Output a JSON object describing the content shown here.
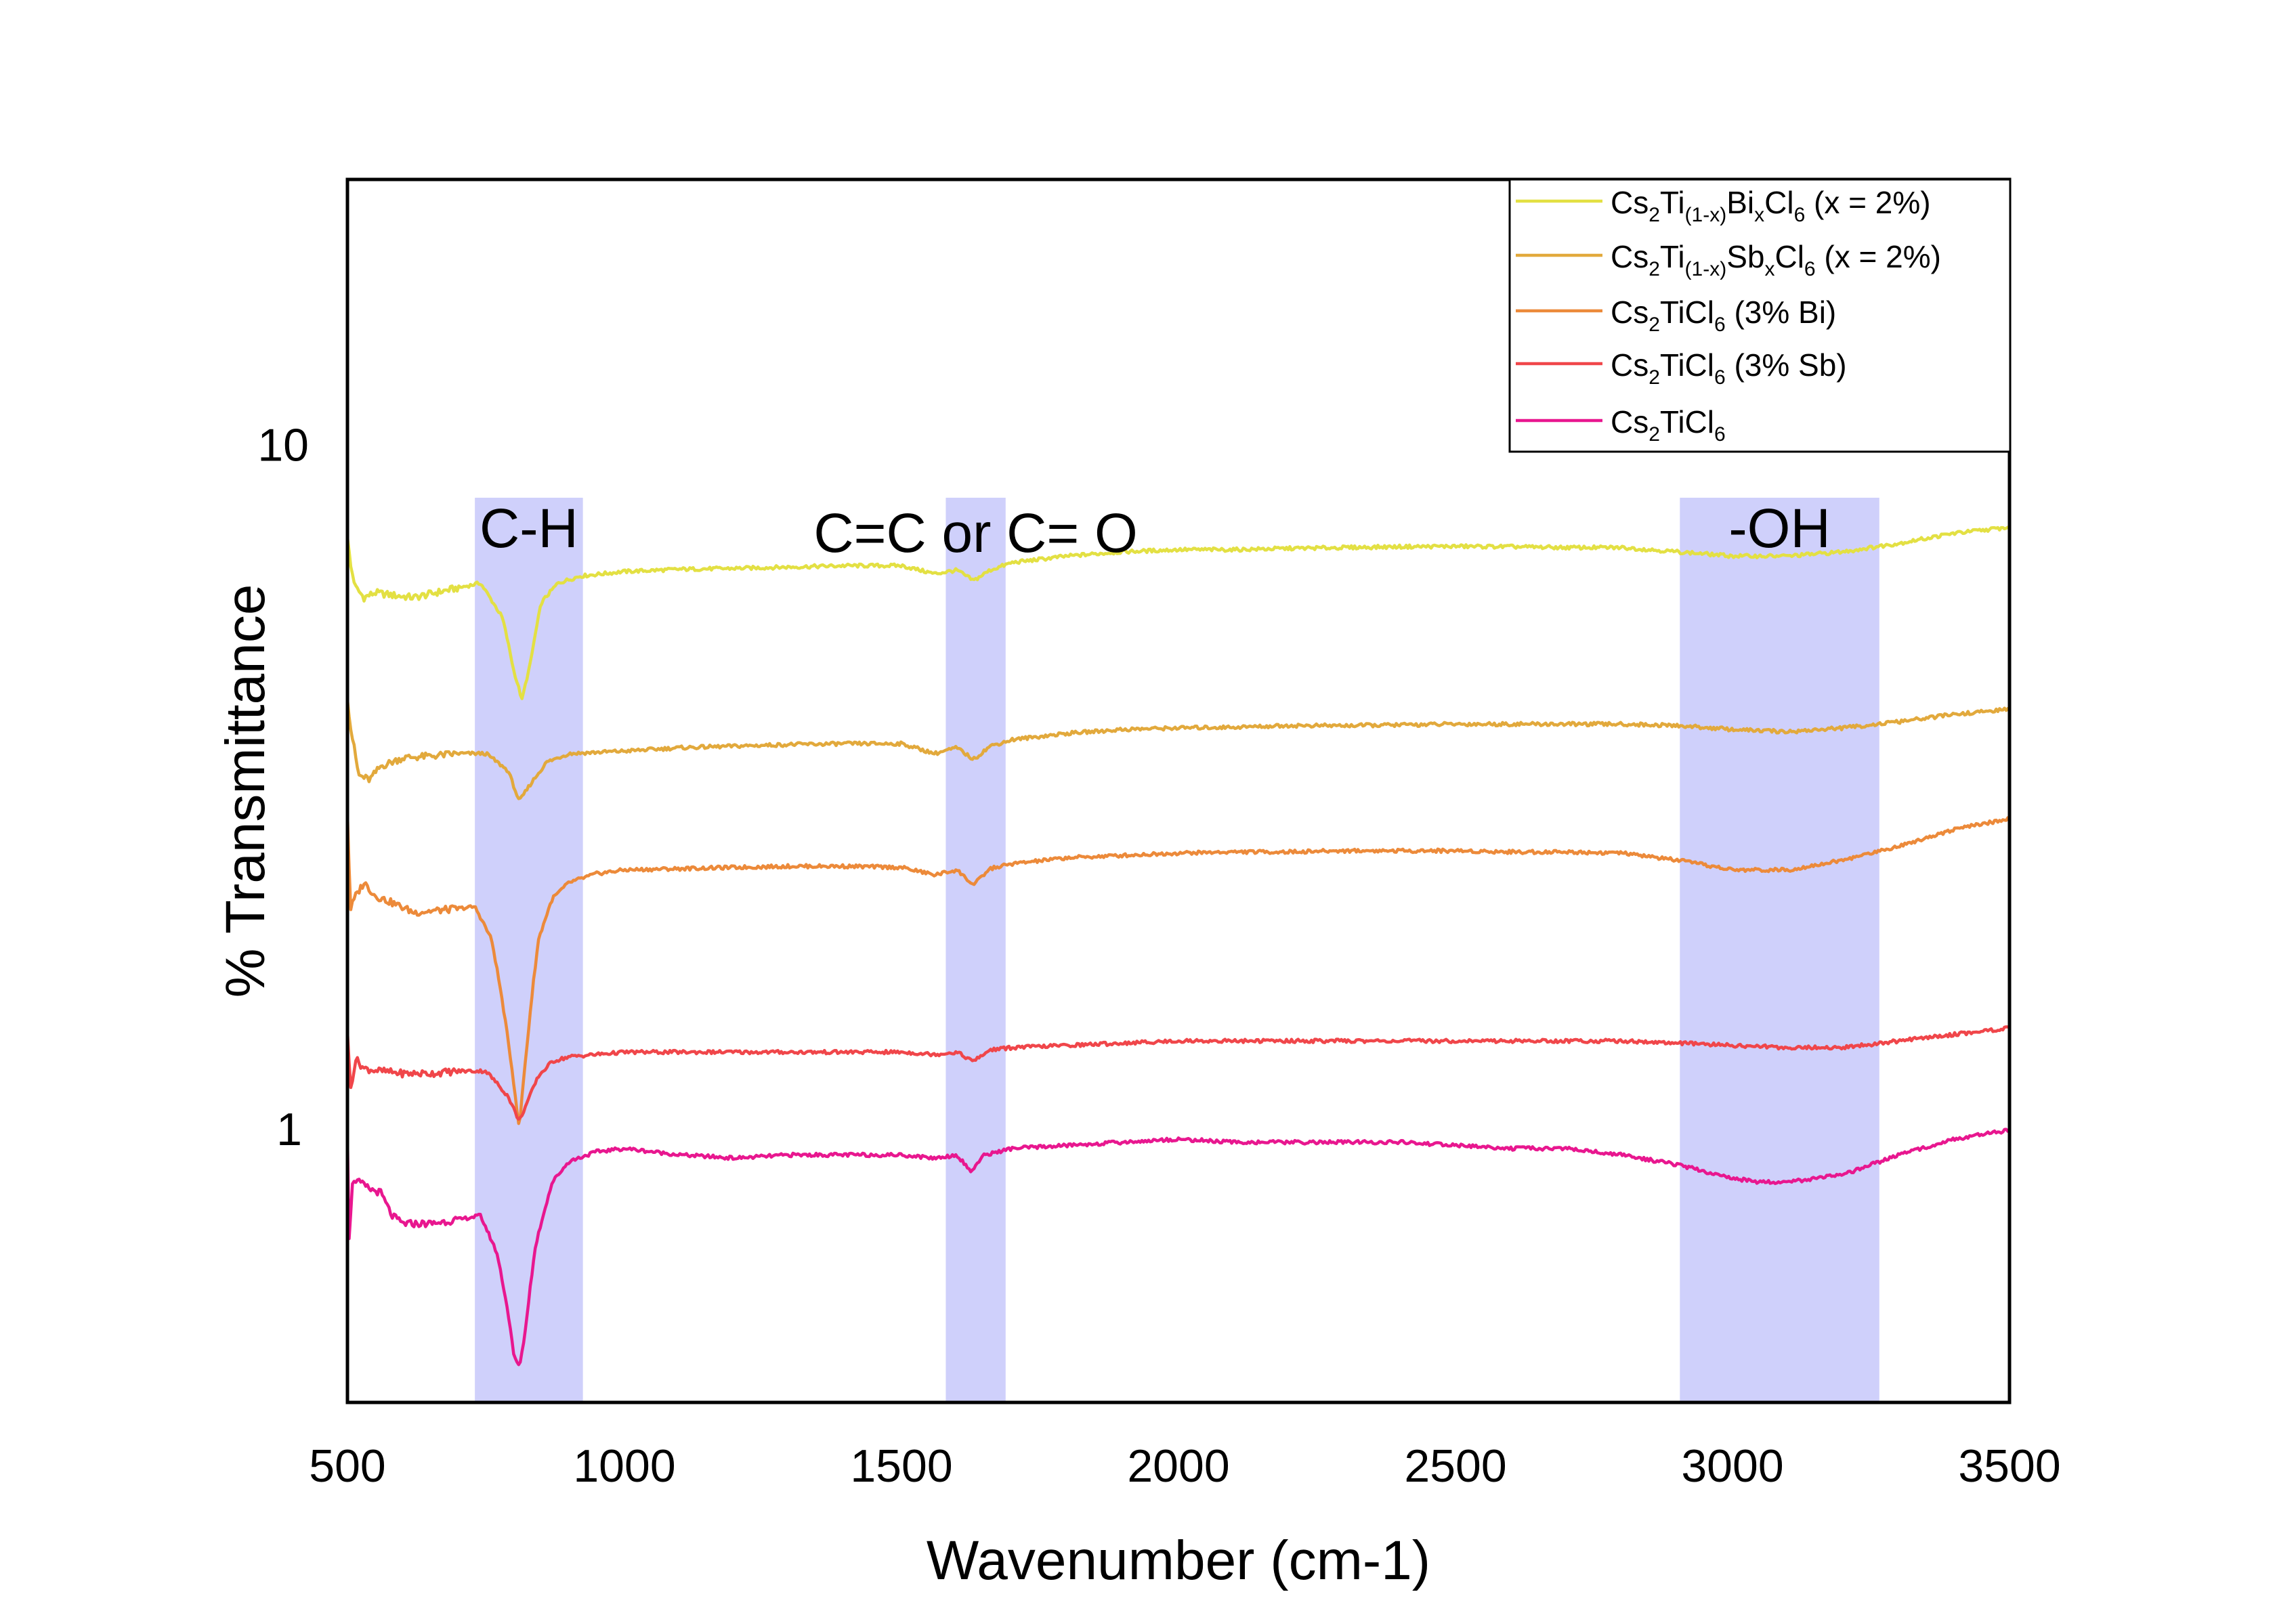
{
  "chart_data": {
    "type": "line",
    "title": "",
    "xlabel": "Wavenumber (cm-1)",
    "ylabel": "% Transmittance",
    "xlim": [
      500,
      3500
    ],
    "ylim": [
      0.4,
      24.5
    ],
    "yscale": "log",
    "x_ticks": [
      {
        "value": 500,
        "label": "500"
      },
      {
        "value": 1000,
        "label": "1000"
      },
      {
        "value": 1500,
        "label": "1500"
      },
      {
        "value": 2000,
        "label": "2000"
      },
      {
        "value": 2500,
        "label": "2500"
      },
      {
        "value": 3000,
        "label": "3000"
      },
      {
        "value": 3500,
        "label": "3500"
      }
    ],
    "y_ticks": [
      {
        "value": 1,
        "label": "1"
      },
      {
        "value": 10,
        "label": "10"
      }
    ],
    "grid": false,
    "bands": [
      {
        "label": "C-H",
        "x_range": [
          730,
          925
        ],
        "color": "#cfd0fb"
      },
      {
        "label": "C=C or C= O",
        "x_range": [
          1580,
          1688
        ],
        "color": "#cfd0fb"
      },
      {
        "label": "-OH",
        "x_range": [
          2905,
          3265
        ],
        "color": "#cfd0fb"
      }
    ],
    "legend": {
      "position": "top-right",
      "entries": [
        {
          "base": "Cs",
          "s1": "2",
          "t1": "Ti",
          "s2": "(1-x)",
          "t2": "Bi",
          "s3": "x",
          "t3": "Cl",
          "s4": "6",
          "tail": " (x = 2%)"
        },
        {
          "base": "Cs",
          "s1": "2",
          "t1": "Ti",
          "s2": "(1-x)",
          "t2": "Sb",
          "s3": "x",
          "t3": "Cl",
          "s4": "6",
          "tail": " (x = 2%)"
        },
        {
          "base": "Cs",
          "s1": "2",
          "t1": "TiCl",
          "s2": "6",
          "tail": " (3% Bi)"
        },
        {
          "base": "Cs",
          "s1": "2",
          "t1": "TiCl",
          "s2": "6",
          "tail": " (3% Sb)"
        },
        {
          "base": "Cs",
          "s1": "2",
          "t1": "TiCl",
          "s2": "6",
          "tail": ""
        }
      ]
    },
    "series": [
      {
        "name": "Cs2Ti(1-x)BixCl6 (x = 2%)",
        "color": "#e3e043",
        "x": [
          500,
          505,
          515,
          530,
          550,
          580,
          620,
          680,
          740,
          780,
          800,
          815,
          830,
          850,
          880,
          920,
          1000,
          1100,
          1200,
          1300,
          1400,
          1500,
          1560,
          1600,
          1630,
          1660,
          1700,
          1800,
          1900,
          2000,
          2100,
          2200,
          2300,
          2400,
          2500,
          2600,
          2700,
          2800,
          2900,
          3000,
          3100,
          3200,
          3300,
          3400,
          3500
        ],
        "y": [
          7.4,
          6.7,
          6.2,
          6.0,
          6.1,
          6.05,
          6.0,
          6.15,
          6.3,
          5.6,
          4.7,
          4.25,
          4.8,
          5.9,
          6.3,
          6.45,
          6.55,
          6.6,
          6.62,
          6.65,
          6.68,
          6.68,
          6.5,
          6.58,
          6.35,
          6.58,
          6.75,
          6.9,
          7.0,
          7.05,
          7.05,
          7.08,
          7.1,
          7.12,
          7.13,
          7.12,
          7.1,
          7.1,
          7.0,
          6.9,
          6.9,
          7.0,
          7.2,
          7.45,
          7.6
        ]
      },
      {
        "name": "Cs2Ti(1-x)SbxCl6 (x = 2%)",
        "color": "#e2a93c",
        "x": [
          500,
          505,
          520,
          540,
          560,
          600,
          650,
          700,
          750,
          790,
          810,
          830,
          860,
          900,
          1000,
          1100,
          1200,
          1300,
          1400,
          1500,
          1560,
          1600,
          1630,
          1660,
          1700,
          1800,
          1900,
          2000,
          2100,
          2200,
          2300,
          2400,
          2500,
          2600,
          2700,
          2800,
          2900,
          3000,
          3100,
          3200,
          3300,
          3400,
          3500
        ],
        "y": [
          4.3,
          3.9,
          3.3,
          3.25,
          3.4,
          3.5,
          3.52,
          3.55,
          3.55,
          3.35,
          3.02,
          3.2,
          3.45,
          3.55,
          3.58,
          3.62,
          3.64,
          3.66,
          3.67,
          3.67,
          3.55,
          3.62,
          3.48,
          3.64,
          3.72,
          3.8,
          3.85,
          3.87,
          3.88,
          3.9,
          3.9,
          3.91,
          3.92,
          3.92,
          3.92,
          3.92,
          3.9,
          3.85,
          3.82,
          3.87,
          3.95,
          4.05,
          4.12
        ]
      },
      {
        "name": "Cs2TiCl6 (3% Bi)",
        "color": "#ec8a3a",
        "x": [
          500,
          505,
          515,
          530,
          550,
          580,
          620,
          680,
          730,
          760,
          790,
          810,
          825,
          845,
          870,
          900,
          950,
          1000,
          1100,
          1200,
          1300,
          1400,
          1500,
          1560,
          1600,
          1630,
          1660,
          1700,
          1800,
          1900,
          2000,
          2100,
          2200,
          2300,
          2400,
          2500,
          2600,
          2700,
          2800,
          2900,
          3000,
          3100,
          3200,
          3300,
          3400,
          3500
        ],
        "y": [
          2.9,
          2.1,
          2.2,
          2.3,
          2.2,
          2.15,
          2.08,
          2.1,
          2.12,
          1.9,
          1.35,
          1.0,
          1.35,
          1.9,
          2.18,
          2.3,
          2.37,
          2.4,
          2.41,
          2.42,
          2.43,
          2.43,
          2.42,
          2.36,
          2.4,
          2.28,
          2.41,
          2.45,
          2.5,
          2.52,
          2.54,
          2.55,
          2.55,
          2.56,
          2.56,
          2.56,
          2.55,
          2.55,
          2.54,
          2.48,
          2.4,
          2.4,
          2.48,
          2.6,
          2.75,
          2.85
        ]
      },
      {
        "name": "Cs2TiCl6 (3% Sb)",
        "color": "#f0464a",
        "x": [
          500,
          505,
          515,
          530,
          560,
          600,
          650,
          700,
          750,
          790,
          810,
          825,
          845,
          870,
          900,
          950,
          1000,
          1100,
          1200,
          1300,
          1400,
          1500,
          1560,
          1600,
          1630,
          1660,
          1700,
          1800,
          1900,
          2000,
          2100,
          2200,
          2300,
          2400,
          2500,
          2600,
          2700,
          2800,
          2900,
          3000,
          3100,
          3200,
          3300,
          3400,
          3500
        ],
        "y": [
          1.4,
          1.14,
          1.27,
          1.23,
          1.22,
          1.21,
          1.21,
          1.22,
          1.22,
          1.12,
          1.03,
          1.1,
          1.2,
          1.26,
          1.28,
          1.29,
          1.3,
          1.3,
          1.3,
          1.3,
          1.3,
          1.3,
          1.29,
          1.3,
          1.26,
          1.31,
          1.32,
          1.33,
          1.34,
          1.35,
          1.35,
          1.35,
          1.35,
          1.35,
          1.35,
          1.35,
          1.35,
          1.35,
          1.34,
          1.33,
          1.32,
          1.32,
          1.35,
          1.38,
          1.41
        ]
      },
      {
        "name": "Cs2TiCl6",
        "color": "#e8178f",
        "x": [
          500,
          503,
          510,
          520,
          540,
          560,
          580,
          600,
          650,
          700,
          740,
          770,
          790,
          800,
          810,
          820,
          840,
          870,
          900,
          950,
          1000,
          1050,
          1100,
          1200,
          1300,
          1400,
          1500,
          1560,
          1600,
          1625,
          1650,
          1700,
          1800,
          1900,
          2000,
          2100,
          2200,
          2300,
          2400,
          2500,
          2600,
          2700,
          2800,
          2900,
          3000,
          3050,
          3100,
          3200,
          3300,
          3400,
          3500
        ],
        "y": [
          0.98,
          0.7,
          0.85,
          0.84,
          0.82,
          0.81,
          0.75,
          0.73,
          0.73,
          0.74,
          0.75,
          0.66,
          0.54,
          0.47,
          0.45,
          0.5,
          0.68,
          0.84,
          0.9,
          0.93,
          0.94,
          0.93,
          0.92,
          0.91,
          0.92,
          0.92,
          0.92,
          0.91,
          0.92,
          0.87,
          0.92,
          0.94,
          0.95,
          0.96,
          0.97,
          0.96,
          0.96,
          0.96,
          0.96,
          0.95,
          0.94,
          0.94,
          0.92,
          0.89,
          0.85,
          0.84,
          0.84,
          0.86,
          0.92,
          0.97,
          1.0
        ]
      }
    ]
  }
}
